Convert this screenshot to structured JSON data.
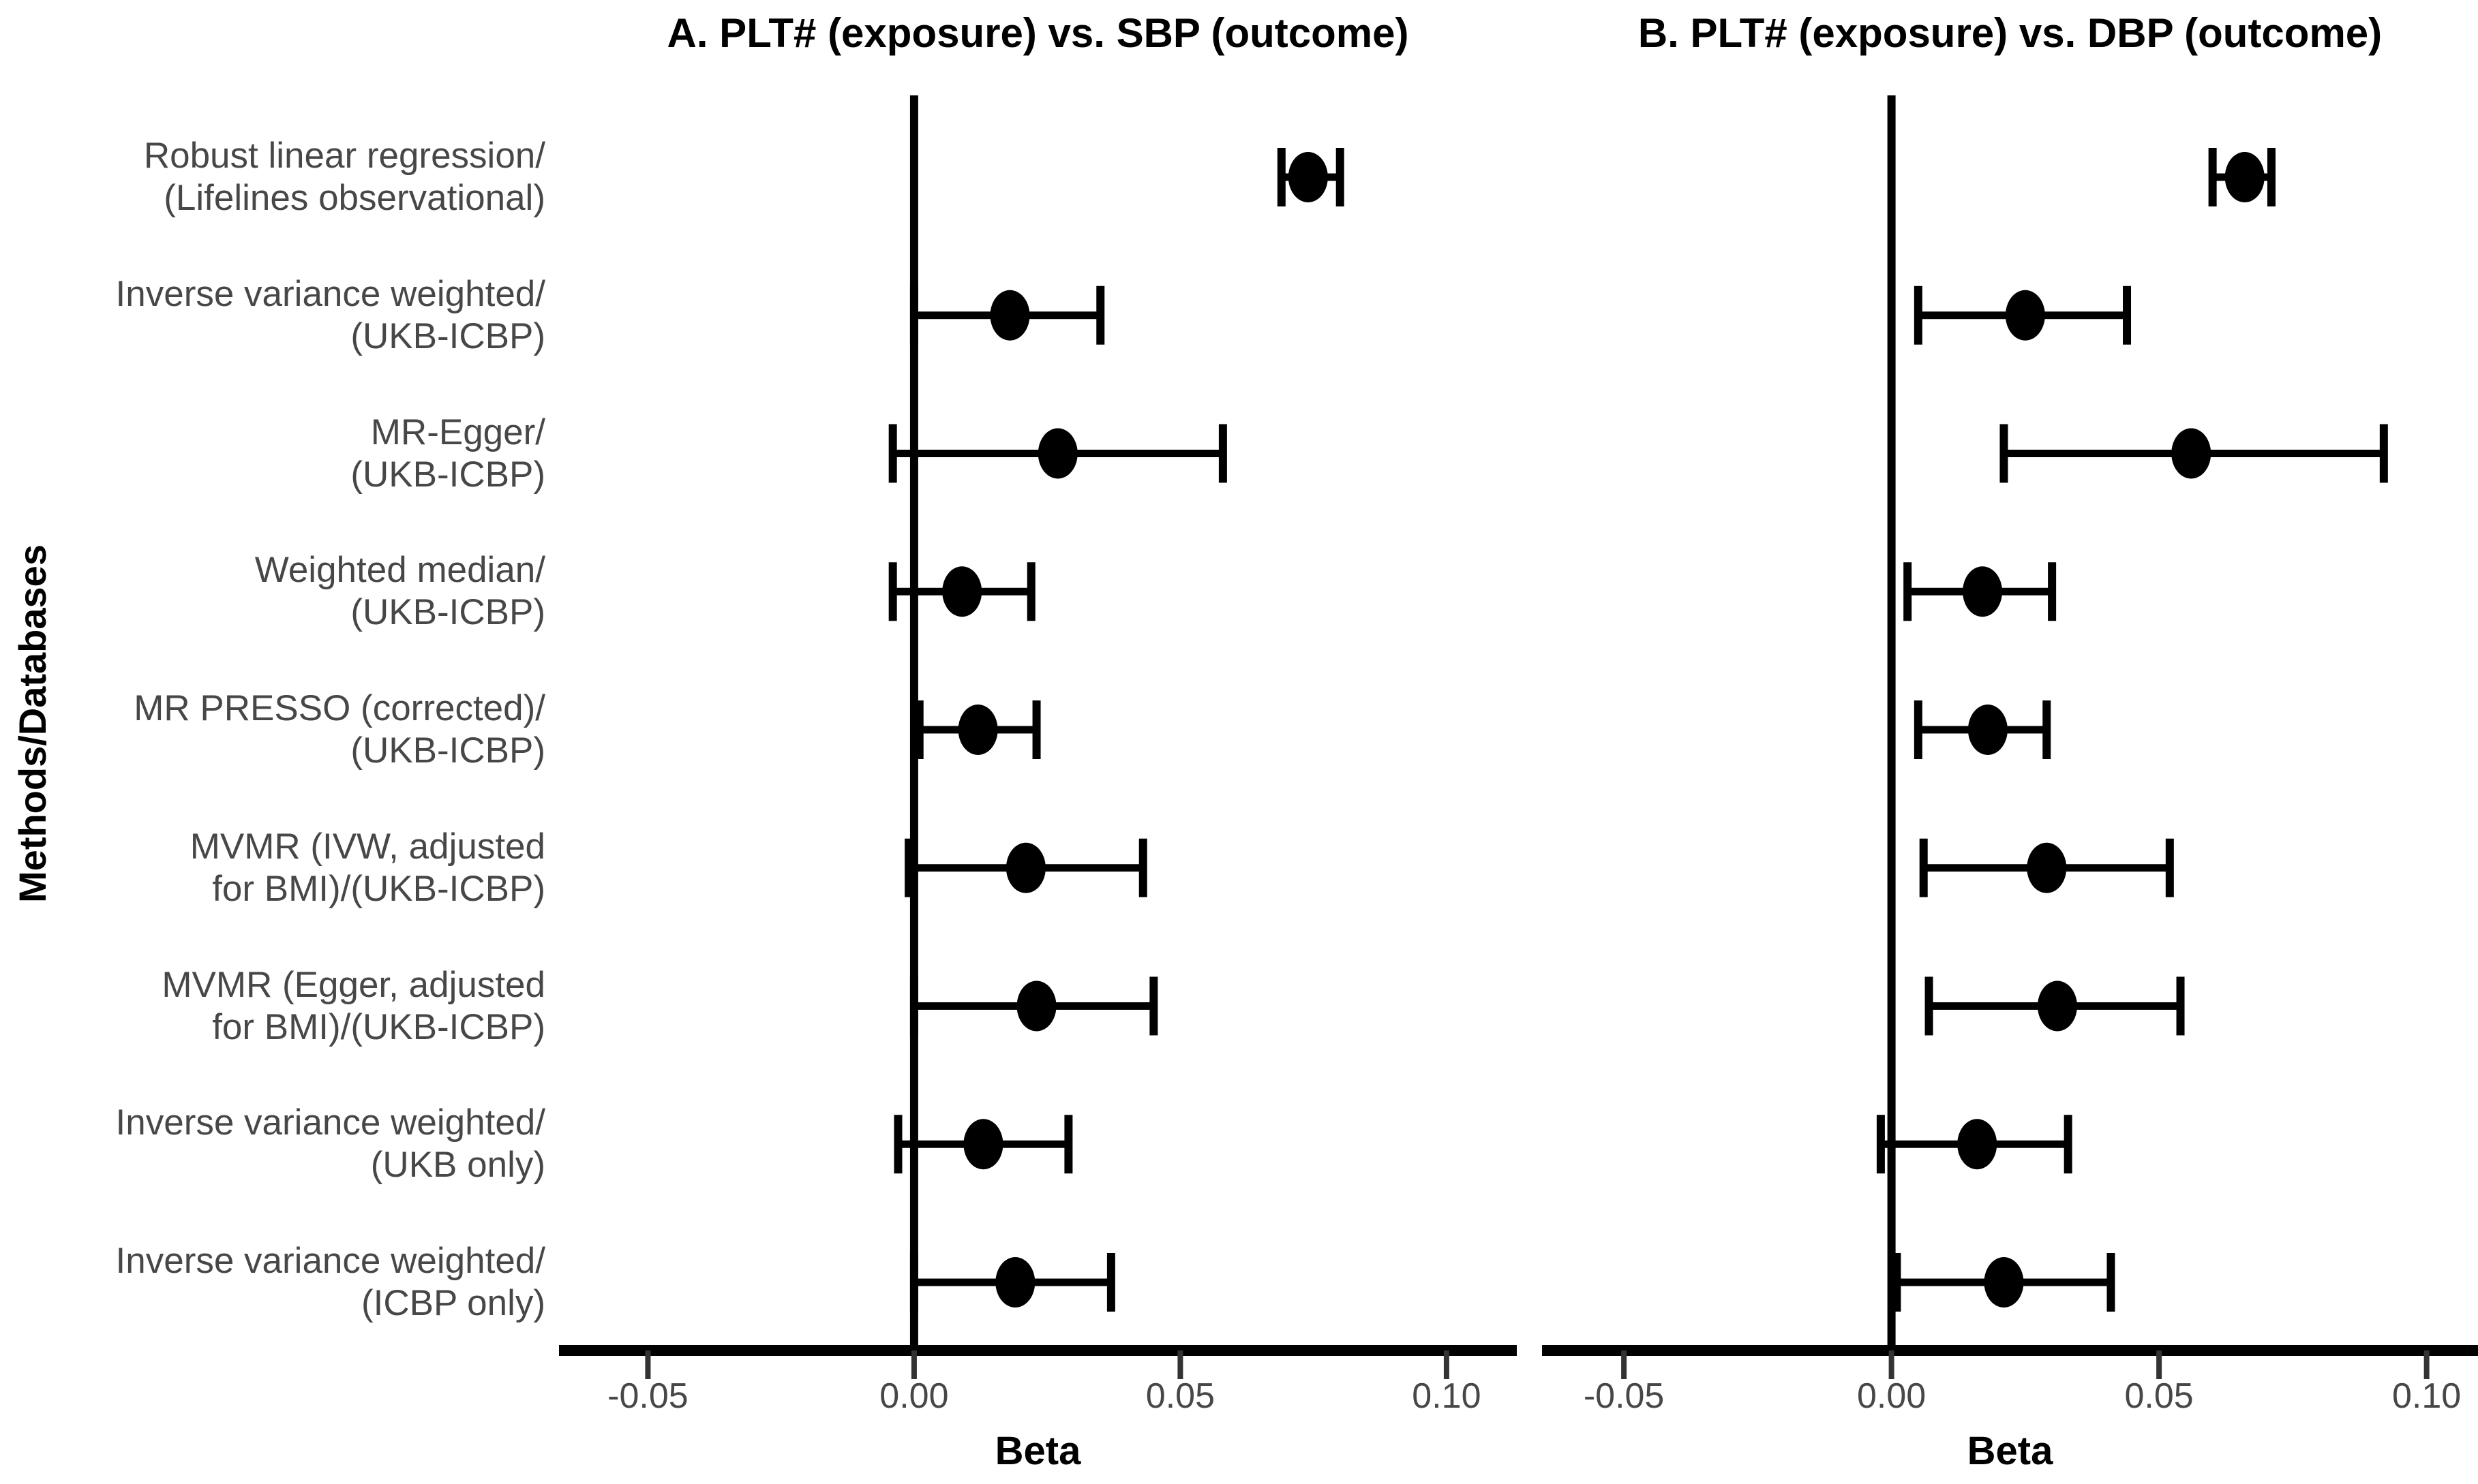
{
  "figure": {
    "background": "#ffffff",
    "ylabel": "Methods/Databases",
    "text_color": "#474747",
    "axis_color": "#000000",
    "point_color": "#000000"
  },
  "methods": [
    {
      "line1": "Robust linear regression/",
      "line2": "(Lifelines observational)"
    },
    {
      "line1": "Inverse variance weighted/",
      "line2": "(UKB-ICBP)"
    },
    {
      "line1": "MR-Egger/",
      "line2": "(UKB-ICBP)"
    },
    {
      "line1": "Weighted median/",
      "line2": "(UKB-ICBP)"
    },
    {
      "line1": "MR PRESSO (corrected)/",
      "line2": "(UKB-ICBP)"
    },
    {
      "line1": "MVMR (IVW, adjusted",
      "line2": "for BMI)/(UKB-ICBP)"
    },
    {
      "line1": "MVMR (Egger, adjusted",
      "line2": "for BMI)/(UKB-ICBP)"
    },
    {
      "line1": "Inverse variance weighted/",
      "line2": "(UKB only)"
    },
    {
      "line1": "Inverse variance weighted/",
      "line2": "(ICBP only)"
    }
  ],
  "chart_data": [
    {
      "type": "forest",
      "panel": "A",
      "title": "A. PLT# (exposure) vs. SBP (outcome)",
      "xlabel": "Beta",
      "ylabel": "Methods/Databases",
      "grid": false,
      "legend": null,
      "xlim": [
        -0.0667,
        0.1132
      ],
      "xticks": [
        -0.05,
        0,
        0.05,
        0.1
      ],
      "xtick_labels": [
        "-0.05",
        "0.00",
        "0.05",
        "0.10"
      ],
      "categories": [
        "Robust linear regression/ (Lifelines observational)",
        "Inverse variance weighted/ (UKB-ICBP)",
        "MR-Egger/ (UKB-ICBP)",
        "Weighted median/ (UKB-ICBP)",
        "MR PRESSO (corrected)/ (UKB-ICBP)",
        "MVMR (IVW, adjusted for BMI)/(UKB-ICBP)",
        "MVMR (Egger, adjusted for BMI)/(UKB-ICBP)",
        "Inverse variance weighted/ (UKB only)",
        "Inverse variance weighted/ (ICBP only)"
      ],
      "values": [
        0.074,
        0.018,
        0.027,
        0.009,
        0.012,
        0.021,
        0.023,
        0.013,
        0.019
      ],
      "ci_low": [
        0.069,
        0.0,
        -0.004,
        -0.004,
        0.001,
        -0.001,
        0.0,
        -0.003,
        0.0
      ],
      "ci_high": [
        0.08,
        0.035,
        0.058,
        0.022,
        0.023,
        0.043,
        0.045,
        0.029,
        0.037
      ]
    },
    {
      "type": "forest",
      "panel": "B",
      "title": "B. PLT# (exposure) vs. DBP (outcome)",
      "xlabel": "Beta",
      "ylabel": "Methods/Databases",
      "grid": false,
      "legend": null,
      "xlim": [
        -0.0653,
        0.1096
      ],
      "xticks": [
        -0.05,
        0,
        0.05,
        0.1
      ],
      "xtick_labels": [
        "-0.05",
        "0.00",
        "0.05",
        "0.10"
      ],
      "categories": [
        "Robust linear regression/ (Lifelines observational)",
        "Inverse variance weighted/ (UKB-ICBP)",
        "MR-Egger/ (UKB-ICBP)",
        "Weighted median/ (UKB-ICBP)",
        "MR PRESSO (corrected)/ (UKB-ICBP)",
        "MVMR (IVW, adjusted for BMI)/(UKB-ICBP)",
        "MVMR (Egger, adjusted for BMI)/(UKB-ICBP)",
        "Inverse variance weighted/ (UKB only)",
        "Inverse variance weighted/ (ICBP only)"
      ],
      "values": [
        0.066,
        0.025,
        0.056,
        0.017,
        0.018,
        0.029,
        0.031,
        0.016,
        0.021
      ],
      "ci_low": [
        0.06,
        0.005,
        0.021,
        0.003,
        0.005,
        0.006,
        0.007,
        -0.002,
        0.001
      ],
      "ci_high": [
        0.071,
        0.044,
        0.092,
        0.03,
        0.029,
        0.052,
        0.054,
        0.033,
        0.041
      ]
    }
  ]
}
